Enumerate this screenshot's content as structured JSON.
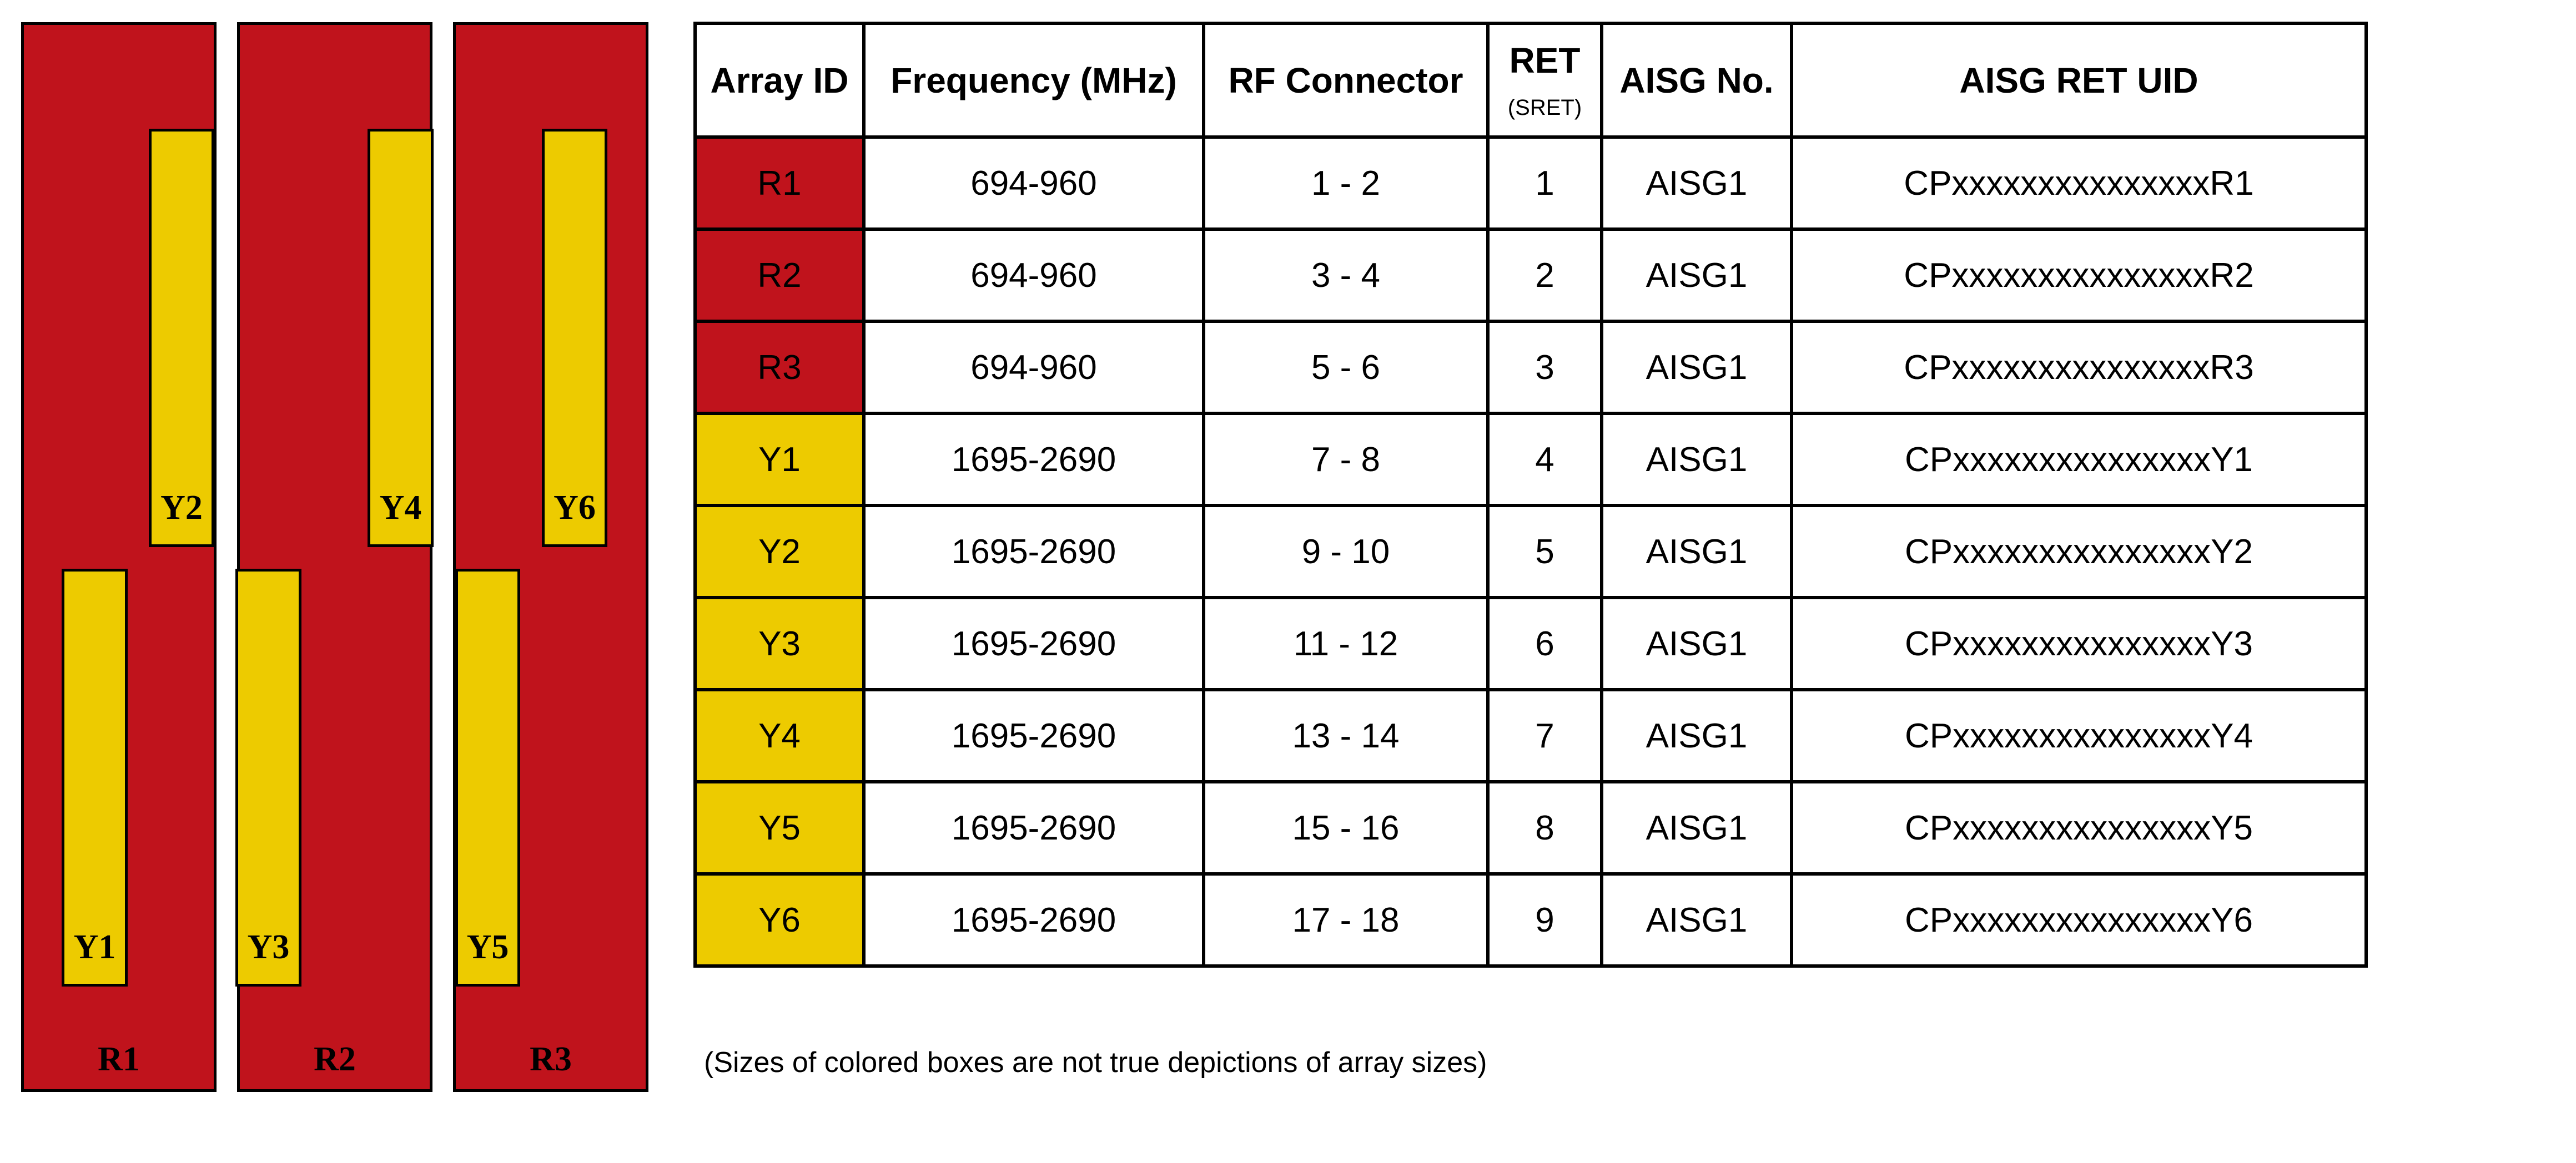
{
  "colors": {
    "red": "#C0131C",
    "yellow": "#EDCB00"
  },
  "diagram": {
    "panels": [
      {
        "label": "R1",
        "upper": "Y2",
        "lower": "Y1"
      },
      {
        "label": "R2",
        "upper": "Y4",
        "lower": "Y3"
      },
      {
        "label": "R3",
        "upper": "Y6",
        "lower": "Y5"
      }
    ]
  },
  "table": {
    "headers": {
      "array_id": "Array ID",
      "frequency": "Frequency (MHz)",
      "rf_connector": "RF Connector",
      "ret": "RET",
      "ret_sub": "(SRET)",
      "aisg_no": "AISG No.",
      "aisg_uid": "AISG RET UID"
    },
    "rows": [
      {
        "id": "R1",
        "band": "red",
        "freq": "694-960",
        "rf": "1 - 2",
        "ret": "1",
        "aisg": "AISG1",
        "uid": "CPxxxxxxxxxxxxxxxR1"
      },
      {
        "id": "R2",
        "band": "red",
        "freq": "694-960",
        "rf": "3 - 4",
        "ret": "2",
        "aisg": "AISG1",
        "uid": "CPxxxxxxxxxxxxxxxR2"
      },
      {
        "id": "R3",
        "band": "red",
        "freq": "694-960",
        "rf": "5 - 6",
        "ret": "3",
        "aisg": "AISG1",
        "uid": "CPxxxxxxxxxxxxxxxR3"
      },
      {
        "id": "Y1",
        "band": "yellow",
        "freq": "1695-2690",
        "rf": "7 - 8",
        "ret": "4",
        "aisg": "AISG1",
        "uid": "CPxxxxxxxxxxxxxxxY1"
      },
      {
        "id": "Y2",
        "band": "yellow",
        "freq": "1695-2690",
        "rf": "9 - 10",
        "ret": "5",
        "aisg": "AISG1",
        "uid": "CPxxxxxxxxxxxxxxxY2"
      },
      {
        "id": "Y3",
        "band": "yellow",
        "freq": "1695-2690",
        "rf": "11 - 12",
        "ret": "6",
        "aisg": "AISG1",
        "uid": "CPxxxxxxxxxxxxxxxY3"
      },
      {
        "id": "Y4",
        "band": "yellow",
        "freq": "1695-2690",
        "rf": "13 - 14",
        "ret": "7",
        "aisg": "AISG1",
        "uid": "CPxxxxxxxxxxxxxxxY4"
      },
      {
        "id": "Y5",
        "band": "yellow",
        "freq": "1695-2690",
        "rf": "15 - 16",
        "ret": "8",
        "aisg": "AISG1",
        "uid": "CPxxxxxxxxxxxxxxxY5"
      },
      {
        "id": "Y6",
        "band": "yellow",
        "freq": "1695-2690",
        "rf": "17 - 18",
        "ret": "9",
        "aisg": "AISG1",
        "uid": "CPxxxxxxxxxxxxxxxY6"
      }
    ]
  },
  "note": "(Sizes of colored boxes are not true depictions of array sizes)"
}
